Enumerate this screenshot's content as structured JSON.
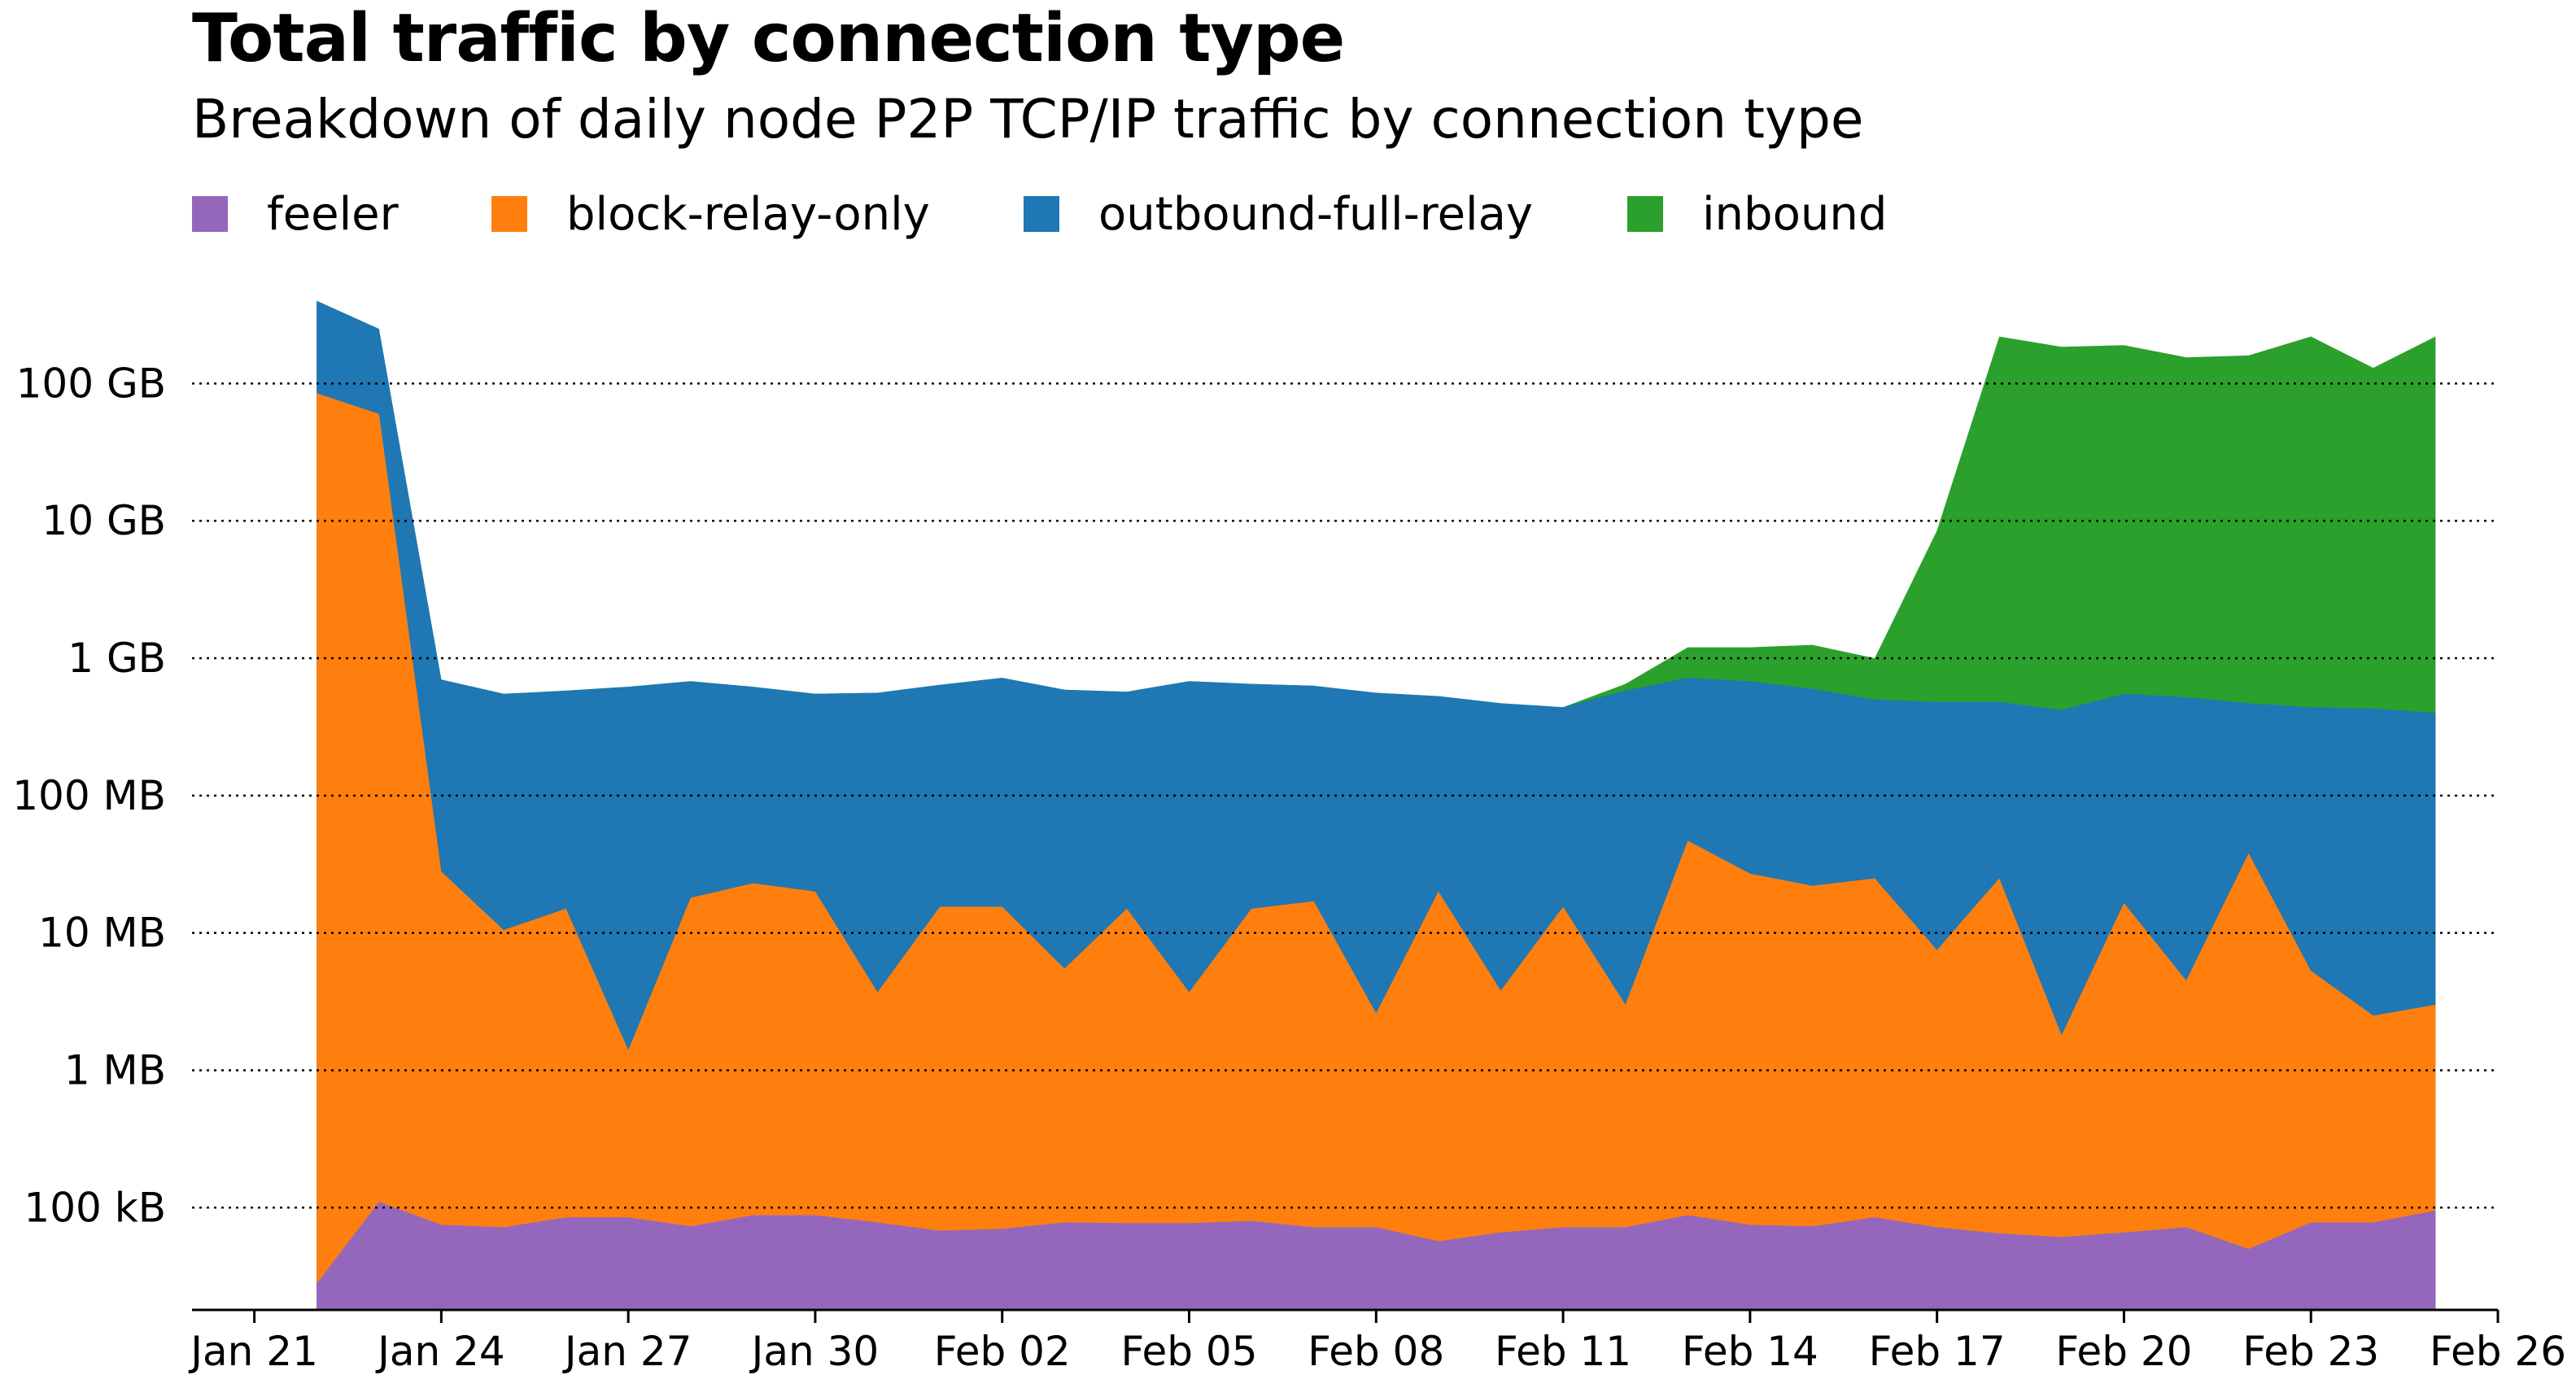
{
  "title": "Total traffic by connection type",
  "subtitle": "Breakdown of daily node P2P TCP/IP traffic by connection type",
  "chart_data": {
    "type": "area",
    "stacked": true,
    "y_scale": "log",
    "ylim_bytes": [
      18000,
      600000000000
    ],
    "y_ticks": [
      {
        "label": "100 kB",
        "value": 100000
      },
      {
        "label": "1 MB",
        "value": 1000000
      },
      {
        "label": "10 MB",
        "value": 10000000
      },
      {
        "label": "100 MB",
        "value": 100000000
      },
      {
        "label": "1 GB",
        "value": 1000000000
      },
      {
        "label": "10 GB",
        "value": 10000000000
      },
      {
        "label": "100 GB",
        "value": 100000000000
      }
    ],
    "y_grid": "dotted",
    "legend_position": "top-left",
    "x_ticks": [
      {
        "label": "Jan 21",
        "date": "2024-01-21"
      },
      {
        "label": "Jan 24",
        "date": "2024-01-24"
      },
      {
        "label": "Jan 27",
        "date": "2024-01-27"
      },
      {
        "label": "Jan 30",
        "date": "2024-01-30"
      },
      {
        "label": "Feb 02",
        "date": "2024-02-02"
      },
      {
        "label": "Feb 05",
        "date": "2024-02-05"
      },
      {
        "label": "Feb 08",
        "date": "2024-02-08"
      },
      {
        "label": "Feb 11",
        "date": "2024-02-11"
      },
      {
        "label": "Feb 14",
        "date": "2024-02-14"
      },
      {
        "label": "Feb 17",
        "date": "2024-02-17"
      },
      {
        "label": "Feb 20",
        "date": "2024-02-20"
      },
      {
        "label": "Feb 23",
        "date": "2024-02-23"
      },
      {
        "label": "Feb 26",
        "date": "2024-02-26"
      }
    ],
    "xlim": [
      "2024-01-20",
      "2024-02-26"
    ],
    "x": [
      "2024-01-22",
      "2024-01-23",
      "2024-01-24",
      "2024-01-25",
      "2024-01-26",
      "2024-01-27",
      "2024-01-28",
      "2024-01-29",
      "2024-01-30",
      "2024-01-31",
      "2024-02-01",
      "2024-02-02",
      "2024-02-03",
      "2024-02-04",
      "2024-02-05",
      "2024-02-06",
      "2024-02-07",
      "2024-02-08",
      "2024-02-09",
      "2024-02-10",
      "2024-02-11",
      "2024-02-12",
      "2024-02-13",
      "2024-02-14",
      "2024-02-15",
      "2024-02-16",
      "2024-02-17",
      "2024-02-18",
      "2024-02-19",
      "2024-02-20",
      "2024-02-21",
      "2024-02-22",
      "2024-02-23",
      "2024-02-24",
      "2024-02-25"
    ],
    "series": [
      {
        "name": "feeler",
        "color": "#9467bd",
        "cumulative_bytes": [
          28000,
          110000,
          75000,
          72000,
          85000,
          85000,
          73000,
          88000,
          88000,
          78000,
          68000,
          70000,
          78000,
          77000,
          77000,
          80000,
          72000,
          72000,
          57000,
          66000,
          72000,
          72000,
          88000,
          75000,
          73000,
          85000,
          72000,
          65000,
          61000,
          66000,
          72000,
          50000,
          78000,
          78000,
          95000
        ]
      },
      {
        "name": "block-relay-only",
        "color": "#ff7f0e",
        "cumulative_bytes": [
          85000000000,
          60000000000,
          28000000,
          10500000,
          15000000,
          1400000,
          18000000,
          23000000,
          20000000,
          3700000,
          15500000,
          15500000,
          5500000,
          15000000,
          3700000,
          15000000,
          17000000,
          2600000,
          20000000,
          3800000,
          15500000,
          3000000,
          47000000,
          27000000,
          22000000,
          25000000,
          7500000,
          25000000,
          1800000,
          16500000,
          4500000,
          38000000,
          5300000,
          2500000,
          3000000
        ]
      },
      {
        "name": "outbound-full-relay",
        "color": "#1f77b4",
        "cumulative_bytes": [
          400000000000,
          250000000000,
          700000000,
          550000000,
          580000000,
          620000000,
          680000000,
          620000000,
          550000000,
          560000000,
          640000000,
          720000000,
          590000000,
          570000000,
          680000000,
          650000000,
          630000000,
          560000000,
          530000000,
          470000000,
          440000000,
          580000000,
          720000000,
          680000000,
          600000000,
          500000000,
          480000000,
          480000000,
          420000000,
          550000000,
          520000000,
          470000000,
          440000000,
          430000000,
          400000000
        ]
      },
      {
        "name": "inbound",
        "color": "#2ca02c",
        "cumulative_bytes": [
          400000000000,
          250000000000,
          700000000,
          550000000,
          580000000,
          620000000,
          680000000,
          620000000,
          550000000,
          560000000,
          640000000,
          720000000,
          590000000,
          570000000,
          680000000,
          650000000,
          630000000,
          560000000,
          530000000,
          470000000,
          440000000,
          650000000,
          1200000000,
          1200000000,
          1250000000,
          1000000000,
          8500000000,
          220000000000,
          185000000000,
          190000000000,
          155000000000,
          160000000000,
          220000000000,
          130000000000,
          220000000000
        ]
      }
    ]
  }
}
